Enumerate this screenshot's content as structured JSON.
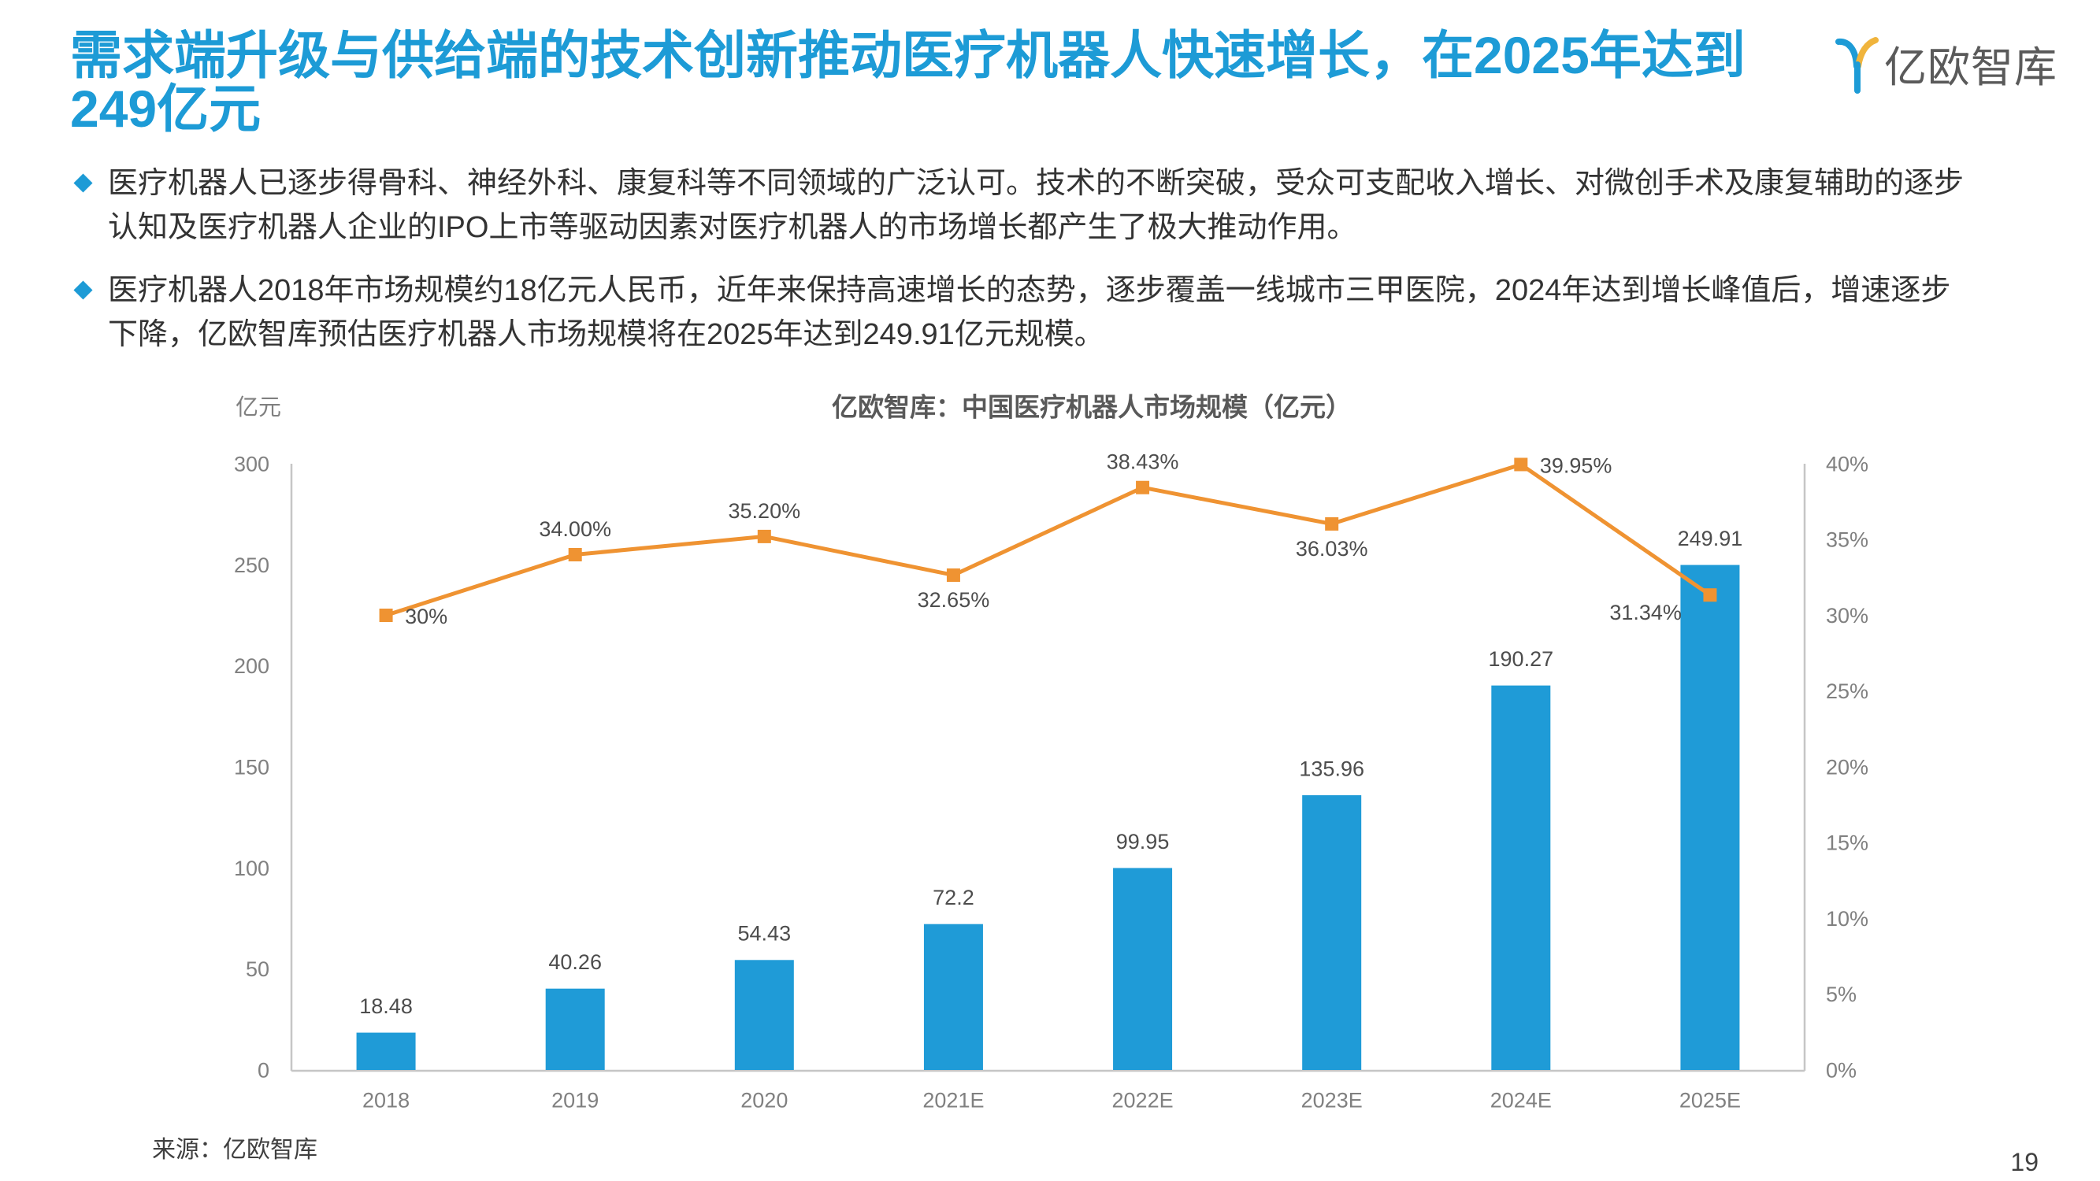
{
  "theme": {
    "accent": "#1d9bd6"
  },
  "header": {
    "title_lines": [
      "需求端升级与供给端的技术创新推动医疗机器人快速增长，在2025年达到",
      "249亿元"
    ]
  },
  "logo": {
    "icon": "yiou-logo-icon",
    "text": "亿欧智库"
  },
  "bullets": [
    {
      "icon": "diamond-bullet-icon",
      "lines": [
        "医疗机器人已逐步得骨科、神经外科、康复科等不同领域的广泛认可。技术的不断突破，受众可支配收入增长、对微创手术及康复辅助的逐步",
        "认知及医疗机器人企业的IPO上市等驱动因素对医疗机器人的市场增长都产生了极大推动作用。"
      ]
    },
    {
      "icon": "diamond-bullet-icon",
      "lines": [
        "医疗机器人2018年市场规模约18亿元人民币，近年来保持高速增长的态势，逐步覆盖一线城市三甲医院，2024年达到增长峰值后，增速逐步",
        "下降，亿欧智库预估医疗机器人市场规模将在2025年达到249.91亿元规模。"
      ]
    }
  ],
  "chart_data": {
    "type": "bar",
    "title": "亿欧智库：中国医疗机器人市场规模（亿元）",
    "ylabel": "亿元",
    "categories": [
      "2018",
      "2019",
      "2020",
      "2021E",
      "2022E",
      "2023E",
      "2024E",
      "2025E"
    ],
    "ylim": [
      0,
      300
    ],
    "yticks": [
      "0",
      "50",
      "100",
      "150",
      "200",
      "250",
      "300"
    ],
    "y2lim": [
      0,
      40
    ],
    "y2ticks": [
      "0%",
      "5%",
      "10%",
      "15%",
      "20%",
      "25%",
      "30%",
      "35%",
      "40%"
    ],
    "grid": false,
    "legend": false,
    "series": [
      {
        "type": "bar",
        "axis": "left",
        "color": "#1f9bd7",
        "values": [
          18.48,
          40.26,
          54.43,
          72.2,
          99.95,
          135.96,
          190.27,
          249.91
        ]
      },
      {
        "type": "line",
        "axis": "right",
        "color": "#ef9332",
        "values": [
          30,
          34.0,
          35.2,
          32.65,
          38.43,
          36.03,
          39.95,
          31.34
        ],
        "labels": [
          "30%",
          "34.00%",
          "35.20%",
          "32.65%",
          "38.43%",
          "36.03%",
          "39.95%",
          "31.34%"
        ]
      }
    ]
  },
  "footer": {
    "source": "来源：亿欧智库",
    "page_number": "19"
  }
}
